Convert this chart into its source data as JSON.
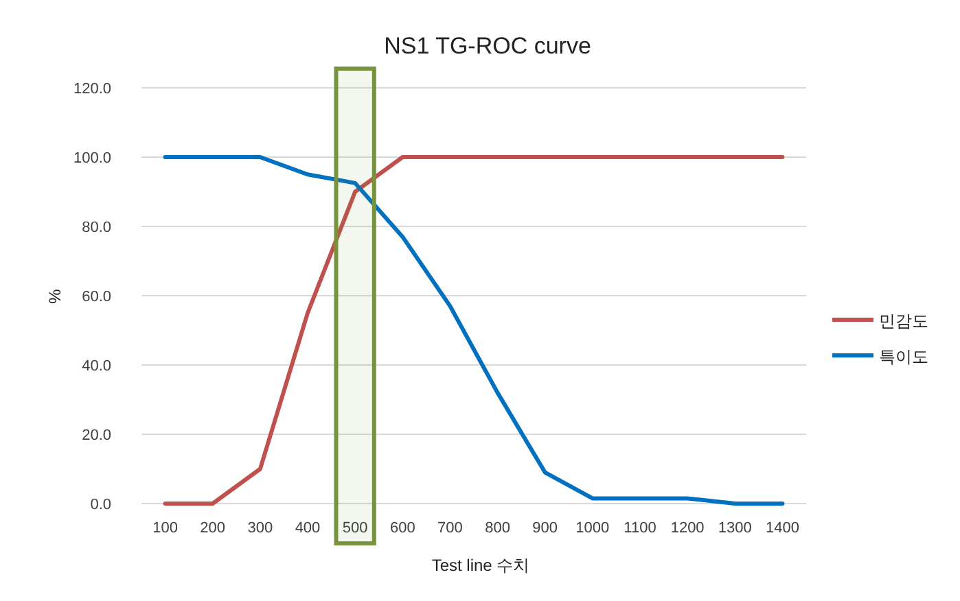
{
  "chart_data": {
    "type": "line",
    "title": "NS1 TG-ROC curve",
    "xlabel": "Test line 수치",
    "ylabel": "%",
    "categories": [
      "100",
      "200",
      "300",
      "400",
      "500",
      "600",
      "700",
      "800",
      "900",
      "1000",
      "1100",
      "1200",
      "1300",
      "1400"
    ],
    "series": [
      {
        "name": "민감도",
        "color": "#c0504d",
        "values": [
          0,
          0,
          10,
          55,
          90,
          100,
          100,
          100,
          100,
          100,
          100,
          100,
          100,
          100
        ]
      },
      {
        "name": "특이도",
        "color": "#0070c0",
        "values": [
          100,
          100,
          100,
          95,
          92.5,
          77,
          57,
          32,
          9,
          1.5,
          1.5,
          1.5,
          0,
          0
        ]
      }
    ],
    "ylim": [
      0,
      120
    ],
    "yticks": [
      {
        "value": 0,
        "label": "0.0"
      },
      {
        "value": 20,
        "label": "20.0"
      },
      {
        "value": 40,
        "label": "40.0"
      },
      {
        "value": 60,
        "label": "60.0"
      },
      {
        "value": 80,
        "label": "80.0"
      },
      {
        "value": 100,
        "label": "100.0"
      },
      {
        "value": 120,
        "label": "120.0"
      }
    ],
    "grid": "y",
    "legend": "right",
    "marker": "none",
    "line_style": "solid",
    "bands": [
      {
        "axis": "x",
        "from": "500",
        "to": "500",
        "color": "#77933c"
      }
    ]
  }
}
